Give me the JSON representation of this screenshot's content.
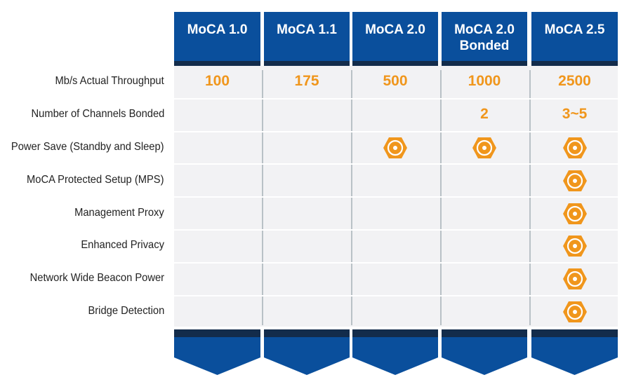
{
  "colors": {
    "header": "#0a4f9c",
    "header_band": "#132c4b",
    "value": "#f0961c",
    "row_bg": "#f2f2f4"
  },
  "chart_data": {
    "type": "table",
    "columns": [
      {
        "label": "MoCA 1.0",
        "sub": ""
      },
      {
        "label": "MoCA 1.1",
        "sub": ""
      },
      {
        "label": "MoCA 2.0",
        "sub": ""
      },
      {
        "label": "MoCA 2.0",
        "sub": "Bonded"
      },
      {
        "label": "MoCA 2.5",
        "sub": ""
      }
    ],
    "rows": [
      {
        "label": "Mb/s Actual Throughput",
        "cells": [
          "100",
          "175",
          "500",
          "1000",
          "2500"
        ]
      },
      {
        "label": "Number of Channels Bonded",
        "cells": [
          "",
          "",
          "",
          "2",
          "3~5"
        ]
      },
      {
        "label": "Power Save (Standby and Sleep)",
        "cells": [
          "",
          "",
          "check",
          "check",
          "check"
        ]
      },
      {
        "label": "MoCA Protected Setup (MPS)",
        "cells": [
          "",
          "",
          "",
          "",
          "check"
        ]
      },
      {
        "label": "Management Proxy",
        "cells": [
          "",
          "",
          "",
          "",
          "check"
        ]
      },
      {
        "label": "Enhanced Privacy",
        "cells": [
          "",
          "",
          "",
          "",
          "check"
        ]
      },
      {
        "label": "Network Wide Beacon Power",
        "cells": [
          "",
          "",
          "",
          "",
          "check"
        ]
      },
      {
        "label": "Bridge Detection",
        "cells": [
          "",
          "",
          "",
          "",
          "check"
        ]
      }
    ],
    "check_icon": "orange-hex-nut-icon"
  }
}
